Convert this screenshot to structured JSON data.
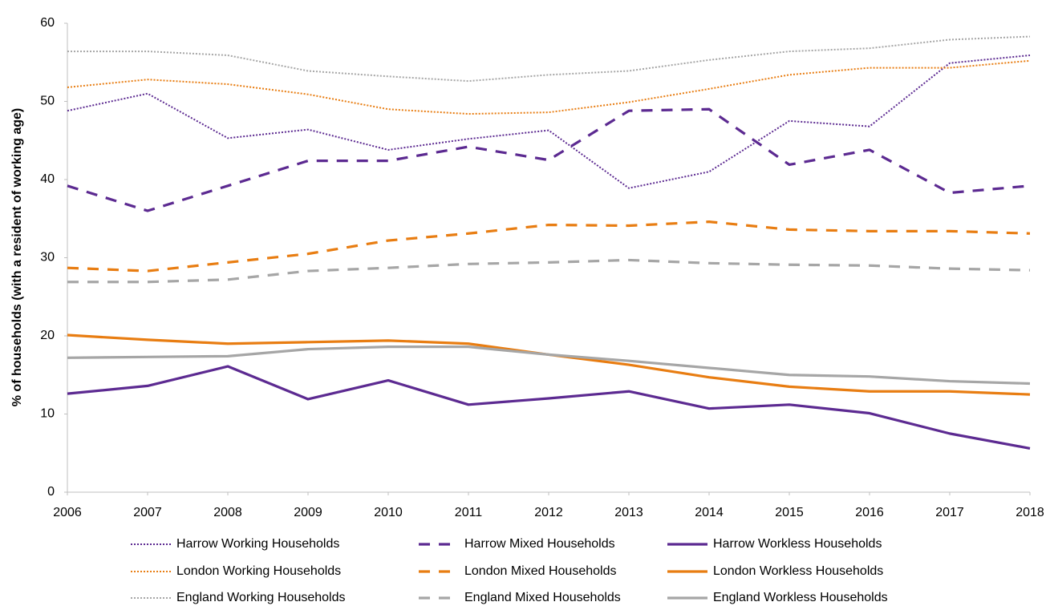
{
  "chart_data": {
    "type": "line",
    "y_label": "% of households (with a resident of working age)",
    "x": [
      2006,
      2007,
      2008,
      2009,
      2010,
      2011,
      2012,
      2013,
      2014,
      2015,
      2016,
      2017,
      2018
    ],
    "xlim": [
      2006,
      2018
    ],
    "xticks": [
      2006,
      2007,
      2008,
      2009,
      2010,
      2011,
      2012,
      2013,
      2014,
      2015,
      2016,
      2017,
      2018
    ],
    "ylim": [
      0,
      60
    ],
    "yticks": [
      0,
      10,
      20,
      30,
      40,
      50,
      60
    ],
    "series": [
      {
        "name": "Harrow Working Households",
        "color": "#5c2a91",
        "dash": "dotted",
        "values": [
          48.8,
          51.0,
          45.3,
          46.4,
          43.8,
          45.2,
          46.3,
          38.9,
          41.0,
          47.5,
          46.8,
          54.9,
          55.9
        ]
      },
      {
        "name": "Harrow Mixed Households",
        "color": "#5c2a91",
        "dash": "dashed",
        "values": [
          39.2,
          36.0,
          39.2,
          42.4,
          42.4,
          44.2,
          42.5,
          48.8,
          49.0,
          41.9,
          43.8,
          38.3,
          39.2
        ]
      },
      {
        "name": "Harrow Workless Households",
        "color": "#5c2a91",
        "dash": "solid",
        "values": [
          12.6,
          13.6,
          16.1,
          11.9,
          14.3,
          11.2,
          12.0,
          12.9,
          10.7,
          11.2,
          10.1,
          7.5,
          5.6
        ]
      },
      {
        "name": "London Working Households",
        "color": "#e87d12",
        "dash": "dotted",
        "values": [
          51.8,
          52.8,
          52.2,
          50.9,
          49.0,
          48.4,
          48.6,
          49.9,
          51.6,
          53.4,
          54.3,
          54.3,
          55.2
        ]
      },
      {
        "name": "London Mixed Households",
        "color": "#e87d12",
        "dash": "dashed",
        "values": [
          28.7,
          28.3,
          29.4,
          30.5,
          32.2,
          33.1,
          34.2,
          34.1,
          34.6,
          33.6,
          33.4,
          33.4,
          33.1
        ]
      },
      {
        "name": "London Workless Households",
        "color": "#e87d12",
        "dash": "solid",
        "values": [
          20.1,
          19.5,
          19.0,
          19.2,
          19.4,
          19.0,
          17.6,
          16.3,
          14.7,
          13.5,
          12.9,
          12.9,
          12.5
        ]
      },
      {
        "name": "England Working Households",
        "color": "#a6a6a6",
        "dash": "dotted",
        "values": [
          56.4,
          56.4,
          55.9,
          53.9,
          53.2,
          52.6,
          53.4,
          53.9,
          55.3,
          56.4,
          56.8,
          57.9,
          58.3
        ]
      },
      {
        "name": "England Mixed Households",
        "color": "#a6a6a6",
        "dash": "dashed",
        "values": [
          26.9,
          26.9,
          27.2,
          28.3,
          28.7,
          29.2,
          29.4,
          29.7,
          29.3,
          29.1,
          29.0,
          28.6,
          28.4
        ]
      },
      {
        "name": "England Workless Households",
        "color": "#a6a6a6",
        "dash": "solid",
        "values": [
          17.2,
          17.3,
          17.4,
          18.3,
          18.6,
          18.6,
          17.6,
          16.8,
          15.9,
          15.0,
          14.8,
          14.2,
          13.9
        ]
      }
    ]
  }
}
